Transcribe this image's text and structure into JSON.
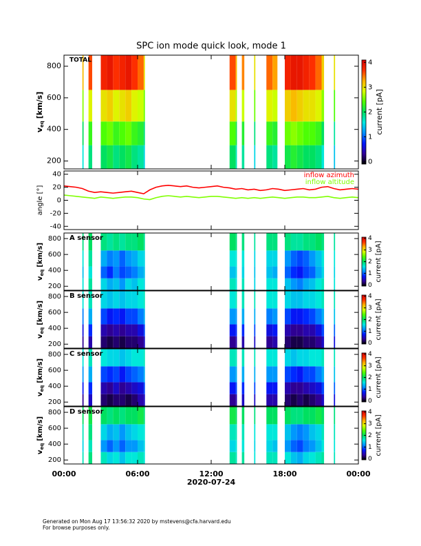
{
  "title": "SPC ion mode quick look, mode 1",
  "footer": [
    "Generated on Mon Aug 17 13:56:32 2020 by mstevens@cfa.harvard.edu",
    "For browse purposes only."
  ],
  "colormap": [
    "#000000",
    "#30009a",
    "#0018ff",
    "#0090ff",
    "#00e8e0",
    "#00e060",
    "#50ff00",
    "#d8ff00",
    "#ffb000",
    "#ff3000",
    "#d40000"
  ],
  "x_axis": {
    "xlim": [
      0,
      24
    ],
    "xticks": [
      {
        "value": 0,
        "label": "00:00"
      },
      {
        "value": 6,
        "label": "06:00"
      },
      {
        "value": 12,
        "label": "12:00"
      },
      {
        "value": 18,
        "label": "18:00"
      },
      {
        "value": 24,
        "label": "00:00"
      }
    ],
    "xlabel": "2020-07-24"
  },
  "chart_data": [
    {
      "type": "heatmap",
      "label": "TOTAL",
      "ylabel": {
        "text": "v",
        "subscript": "eq",
        "unit": "[km/s]"
      },
      "ylim": [
        150,
        870
      ],
      "yticks": [
        200,
        400,
        600,
        800
      ],
      "clim": [
        -0.1,
        4.1
      ],
      "cticks": [
        0,
        1,
        2,
        3,
        4
      ],
      "clabel": "current [pA]",
      "y_edges": [
        150,
        300,
        450,
        650,
        870
      ],
      "x_start": [
        1.5,
        2.0,
        3.0,
        3.5,
        4.0,
        4.5,
        5.0,
        5.5,
        6.0,
        6.5,
        13.5,
        14.0,
        14.5,
        15.5,
        16.5,
        17.0,
        18.0,
        18.5,
        19.0,
        19.5,
        20.0,
        20.5,
        21.0,
        22.0
      ],
      "x_end": [
        1.6,
        2.3,
        3.5,
        4.0,
        4.5,
        5.0,
        5.5,
        6.0,
        6.5,
        6.6,
        14.0,
        14.1,
        14.7,
        15.6,
        17.0,
        17.4,
        18.5,
        19.0,
        19.5,
        20.0,
        20.5,
        21.0,
        21.2,
        22.1
      ],
      "z": [
        [
          1.6,
          1.9,
          2.0,
          2.1,
          1.9,
          2.0,
          2.1,
          1.9,
          1.8,
          1.5,
          2.0,
          1.7,
          1.8,
          1.5,
          1.9,
          1.8,
          2.1,
          2.2,
          2.1,
          2.0,
          2.0,
          1.9,
          1.6,
          1.4
        ],
        [
          2.0,
          2.3,
          2.4,
          2.5,
          2.3,
          2.4,
          2.5,
          2.3,
          2.2,
          1.9,
          2.4,
          2.1,
          2.2,
          1.9,
          2.3,
          2.2,
          2.5,
          2.6,
          2.5,
          2.4,
          2.4,
          2.3,
          2.0,
          1.8
        ],
        [
          2.6,
          2.9,
          3.0,
          3.1,
          2.9,
          3.0,
          3.1,
          2.9,
          2.8,
          2.5,
          3.0,
          2.7,
          2.8,
          2.5,
          2.9,
          2.8,
          3.1,
          3.2,
          3.1,
          3.0,
          3.0,
          2.9,
          2.6,
          2.4
        ],
        [
          3.2,
          3.6,
          3.8,
          3.9,
          3.7,
          3.8,
          3.9,
          3.7,
          3.5,
          3.0,
          3.6,
          3.2,
          3.4,
          3.0,
          3.5,
          3.3,
          3.8,
          3.9,
          3.9,
          3.8,
          3.7,
          3.5,
          3.1,
          3.0
        ]
      ]
    },
    {
      "type": "line",
      "ylabel": "angle [°]",
      "ylim": [
        -45,
        45
      ],
      "yticks": [
        -40,
        -20,
        0,
        20,
        40
      ],
      "x": [
        0,
        0.5,
        1,
        1.5,
        2,
        2.5,
        3,
        3.5,
        4,
        4.5,
        5,
        5.5,
        6,
        6.5,
        7,
        7.5,
        8,
        8.5,
        9,
        9.5,
        10,
        10.5,
        11,
        11.5,
        12,
        12.5,
        13,
        13.5,
        14,
        14.5,
        15,
        15.5,
        16,
        16.5,
        17,
        17.5,
        18,
        18.5,
        19,
        19.5,
        20,
        20.5,
        21,
        21.5,
        22,
        22.5,
        23,
        23.5,
        24
      ],
      "series": [
        {
          "name": "inflow azimuth",
          "color": "#ff0000",
          "values": [
            22,
            21,
            20,
            18,
            14,
            12,
            13,
            12,
            11,
            12,
            13,
            14,
            12,
            10,
            16,
            20,
            22,
            23,
            22,
            21,
            22,
            20,
            19,
            20,
            21,
            22,
            20,
            19,
            17,
            18,
            16,
            17,
            15,
            16,
            18,
            17,
            15,
            16,
            17,
            18,
            16,
            17,
            20,
            21,
            18,
            16,
            17,
            18,
            17
          ]
        },
        {
          "name": "inflow altitude",
          "color": "#7fff00",
          "values": [
            8,
            7,
            6,
            5,
            4,
            3,
            5,
            4,
            3,
            4,
            5,
            5,
            4,
            2,
            1,
            4,
            6,
            7,
            6,
            5,
            6,
            5,
            4,
            5,
            6,
            6,
            5,
            4,
            3,
            4,
            3,
            4,
            3,
            4,
            5,
            4,
            3,
            4,
            5,
            5,
            4,
            4,
            5,
            6,
            4,
            3,
            4,
            5,
            4
          ]
        }
      ]
    },
    {
      "type": "heatmap",
      "label": "A sensor",
      "ylabel": {
        "text": "v",
        "subscript": "eq",
        "unit": "[km/s]"
      },
      "ylim": [
        150,
        870
      ],
      "yticks": [
        200,
        400,
        600,
        800
      ],
      "clim": [
        -0.1,
        4.1
      ],
      "cticks": [
        0,
        1,
        2,
        3,
        4
      ],
      "clabel": "current [pA]",
      "y_edges": [
        150,
        300,
        450,
        650,
        870
      ],
      "x_start": [
        1.5,
        2.0,
        3.0,
        3.5,
        4.0,
        4.5,
        5.0,
        5.5,
        6.0,
        6.5,
        13.5,
        14.0,
        14.5,
        15.5,
        16.5,
        17.0,
        18.0,
        18.5,
        19.0,
        19.5,
        20.0,
        20.5,
        21.0,
        22.0
      ],
      "x_end": [
        1.6,
        2.3,
        3.5,
        4.0,
        4.5,
        5.0,
        5.5,
        6.0,
        6.5,
        6.6,
        14.0,
        14.1,
        14.7,
        15.6,
        17.0,
        17.4,
        18.5,
        19.0,
        19.5,
        20.0,
        20.5,
        21.0,
        21.2,
        22.1
      ],
      "z": [
        [
          1.6,
          1.8,
          1.5,
          1.3,
          1.4,
          1.2,
          1.5,
          1.4,
          1.6,
          1.5,
          1.7,
          1.6,
          1.7,
          1.5,
          1.6,
          1.6,
          1.4,
          1.2,
          1.1,
          1.3,
          1.4,
          1.6,
          1.7,
          1.6
        ],
        [
          1.4,
          1.6,
          1.0,
          0.8,
          1.1,
          0.9,
          1.0,
          1.1,
          1.3,
          1.4,
          1.4,
          1.5,
          1.5,
          1.4,
          1.4,
          1.3,
          1.0,
          0.8,
          0.7,
          0.9,
          1.0,
          1.3,
          1.5,
          1.5
        ],
        [
          1.6,
          1.8,
          1.3,
          1.1,
          1.2,
          1.0,
          1.2,
          1.3,
          1.5,
          1.5,
          1.6,
          1.6,
          1.6,
          1.5,
          1.5,
          1.5,
          1.2,
          1.0,
          0.9,
          1.0,
          1.2,
          1.4,
          1.6,
          1.6
        ],
        [
          1.9,
          2.0,
          1.9,
          1.8,
          1.9,
          1.8,
          1.9,
          1.9,
          2.0,
          1.8,
          2.0,
          1.9,
          1.9,
          1.8,
          1.9,
          1.9,
          1.9,
          1.8,
          1.8,
          1.9,
          1.9,
          2.0,
          1.9,
          1.8
        ]
      ]
    },
    {
      "type": "heatmap",
      "label": "B sensor",
      "ylabel": {
        "text": "v",
        "subscript": "eq",
        "unit": "[km/s]"
      },
      "ylim": [
        150,
        870
      ],
      "yticks": [
        200,
        400,
        600,
        800
      ],
      "clim": [
        -0.1,
        4.1
      ],
      "cticks": [
        0,
        1,
        2,
        3,
        4
      ],
      "clabel": "current [pA]",
      "y_edges": [
        150,
        300,
        450,
        650,
        870
      ],
      "x_start": [
        1.5,
        2.0,
        3.0,
        3.5,
        4.0,
        4.5,
        5.0,
        5.5,
        6.0,
        6.5,
        13.5,
        14.0,
        14.5,
        15.5,
        16.5,
        17.0,
        18.0,
        18.5,
        19.0,
        19.5,
        20.0,
        20.5,
        21.0,
        22.0
      ],
      "x_end": [
        1.6,
        2.3,
        3.5,
        4.0,
        4.5,
        5.0,
        5.5,
        6.0,
        6.5,
        6.6,
        14.0,
        14.1,
        14.7,
        15.6,
        17.0,
        17.4,
        18.5,
        19.0,
        19.5,
        20.0,
        20.5,
        21.0,
        21.2,
        22.1
      ],
      "z": [
        [
          0.3,
          0.4,
          0.2,
          0.1,
          0.2,
          0.1,
          0.2,
          0.2,
          0.3,
          0.5,
          0.3,
          0.4,
          0.4,
          0.5,
          0.3,
          0.4,
          0.2,
          0.1,
          0.1,
          0.2,
          0.2,
          0.3,
          0.5,
          0.6
        ],
        [
          0.6,
          0.8,
          0.4,
          0.3,
          0.4,
          0.3,
          0.4,
          0.4,
          0.6,
          0.9,
          0.7,
          0.8,
          0.8,
          0.9,
          0.6,
          0.7,
          0.4,
          0.3,
          0.3,
          0.4,
          0.4,
          0.6,
          0.9,
          1.0
        ],
        [
          1.1,
          1.3,
          0.9,
          0.7,
          0.8,
          0.7,
          0.9,
          0.9,
          1.1,
          1.3,
          1.2,
          1.2,
          1.3,
          1.3,
          1.1,
          1.2,
          0.9,
          0.7,
          0.7,
          0.8,
          0.9,
          1.1,
          1.3,
          1.4
        ],
        [
          1.6,
          1.7,
          1.5,
          1.4,
          1.5,
          1.4,
          1.5,
          1.5,
          1.6,
          1.7,
          1.6,
          1.7,
          1.7,
          1.7,
          1.6,
          1.6,
          1.5,
          1.4,
          1.4,
          1.5,
          1.5,
          1.6,
          1.7,
          1.7
        ]
      ]
    },
    {
      "type": "heatmap",
      "label": "C sensor",
      "ylabel": {
        "text": "v",
        "subscript": "eq",
        "unit": "[km/s]"
      },
      "ylim": [
        150,
        870
      ],
      "yticks": [
        200,
        400,
        600,
        800
      ],
      "clim": [
        -0.1,
        4.1
      ],
      "cticks": [
        0,
        1,
        2,
        3,
        4
      ],
      "clabel": "current [pA]",
      "y_edges": [
        150,
        300,
        450,
        650,
        870
      ],
      "x_start": [
        1.5,
        2.0,
        3.0,
        3.5,
        4.0,
        4.5,
        5.0,
        5.5,
        6.0,
        6.5,
        13.5,
        14.0,
        14.5,
        15.5,
        16.5,
        17.0,
        18.0,
        18.5,
        19.0,
        19.5,
        20.0,
        20.5,
        21.0,
        22.0
      ],
      "x_end": [
        1.6,
        2.3,
        3.5,
        4.0,
        4.5,
        5.0,
        5.5,
        6.0,
        6.5,
        6.6,
        14.0,
        14.1,
        14.7,
        15.6,
        17.0,
        17.4,
        18.5,
        19.0,
        19.5,
        20.0,
        20.5,
        21.0,
        21.2,
        22.1
      ],
      "z": [
        [
          0.3,
          0.5,
          0.2,
          0.1,
          0.2,
          0.2,
          0.1,
          0.2,
          0.4,
          0.5,
          0.3,
          0.4,
          0.5,
          0.5,
          0.4,
          0.4,
          0.2,
          0.1,
          0.2,
          0.1,
          0.2,
          0.3,
          0.5,
          0.6
        ],
        [
          0.7,
          0.8,
          0.4,
          0.3,
          0.5,
          0.3,
          0.4,
          0.5,
          0.6,
          0.9,
          0.7,
          0.9,
          0.8,
          0.9,
          0.7,
          0.7,
          0.4,
          0.3,
          0.3,
          0.4,
          0.5,
          0.6,
          0.9,
          1.0
        ],
        [
          1.2,
          1.3,
          0.9,
          0.8,
          0.9,
          0.7,
          0.9,
          1.0,
          1.1,
          1.3,
          1.2,
          1.3,
          1.3,
          1.3,
          1.2,
          1.2,
          0.9,
          0.8,
          0.7,
          0.9,
          0.9,
          1.1,
          1.3,
          1.4
        ],
        [
          1.6,
          1.7,
          1.6,
          1.5,
          1.5,
          1.4,
          1.5,
          1.6,
          1.6,
          1.7,
          1.7,
          1.7,
          1.7,
          1.7,
          1.6,
          1.6,
          1.5,
          1.4,
          1.5,
          1.5,
          1.6,
          1.6,
          1.7,
          1.7
        ]
      ]
    },
    {
      "type": "heatmap",
      "label": "D sensor",
      "ylabel": {
        "text": "v",
        "subscript": "eq",
        "unit": "[km/s]"
      },
      "ylim": [
        150,
        870
      ],
      "yticks": [
        200,
        400,
        600,
        800
      ],
      "clim": [
        -0.1,
        4.1
      ],
      "cticks": [
        0,
        1,
        2,
        3,
        4
      ],
      "clabel": "current [pA]",
      "y_edges": [
        150,
        300,
        450,
        650,
        870
      ],
      "x_start": [
        1.5,
        2.0,
        3.0,
        3.5,
        4.0,
        4.5,
        5.0,
        5.5,
        6.0,
        6.5,
        13.5,
        14.0,
        14.5,
        15.5,
        16.5,
        17.0,
        18.0,
        18.5,
        19.0,
        19.5,
        20.0,
        20.5,
        21.0,
        22.0
      ],
      "x_end": [
        1.6,
        2.3,
        3.5,
        4.0,
        4.5,
        5.0,
        5.5,
        6.0,
        6.5,
        6.6,
        14.0,
        14.1,
        14.7,
        15.6,
        17.0,
        17.4,
        18.5,
        19.0,
        19.5,
        20.0,
        20.5,
        21.0,
        21.2,
        22.1
      ],
      "z": [
        [
          1.7,
          1.9,
          1.7,
          1.5,
          1.6,
          1.4,
          1.6,
          1.6,
          1.7,
          1.6,
          1.8,
          1.7,
          1.8,
          1.6,
          1.7,
          1.7,
          1.6,
          1.4,
          1.3,
          1.5,
          1.6,
          1.7,
          1.8,
          1.7
        ],
        [
          1.5,
          1.7,
          1.2,
          1.0,
          1.2,
          1.0,
          1.2,
          1.2,
          1.4,
          1.5,
          1.5,
          1.6,
          1.6,
          1.5,
          1.5,
          1.4,
          1.2,
          1.0,
          0.9,
          1.1,
          1.2,
          1.4,
          1.6,
          1.6
        ],
        [
          1.7,
          1.9,
          1.5,
          1.3,
          1.4,
          1.2,
          1.4,
          1.5,
          1.6,
          1.6,
          1.7,
          1.7,
          1.7,
          1.6,
          1.6,
          1.6,
          1.4,
          1.2,
          1.1,
          1.2,
          1.4,
          1.5,
          1.7,
          1.7
        ],
        [
          2.0,
          2.1,
          2.0,
          1.9,
          2.0,
          1.9,
          2.0,
          2.0,
          2.1,
          1.9,
          2.1,
          2.0,
          2.0,
          1.9,
          2.0,
          2.0,
          2.0,
          1.9,
          1.9,
          2.0,
          2.0,
          2.1,
          2.0,
          1.9
        ]
      ]
    }
  ]
}
